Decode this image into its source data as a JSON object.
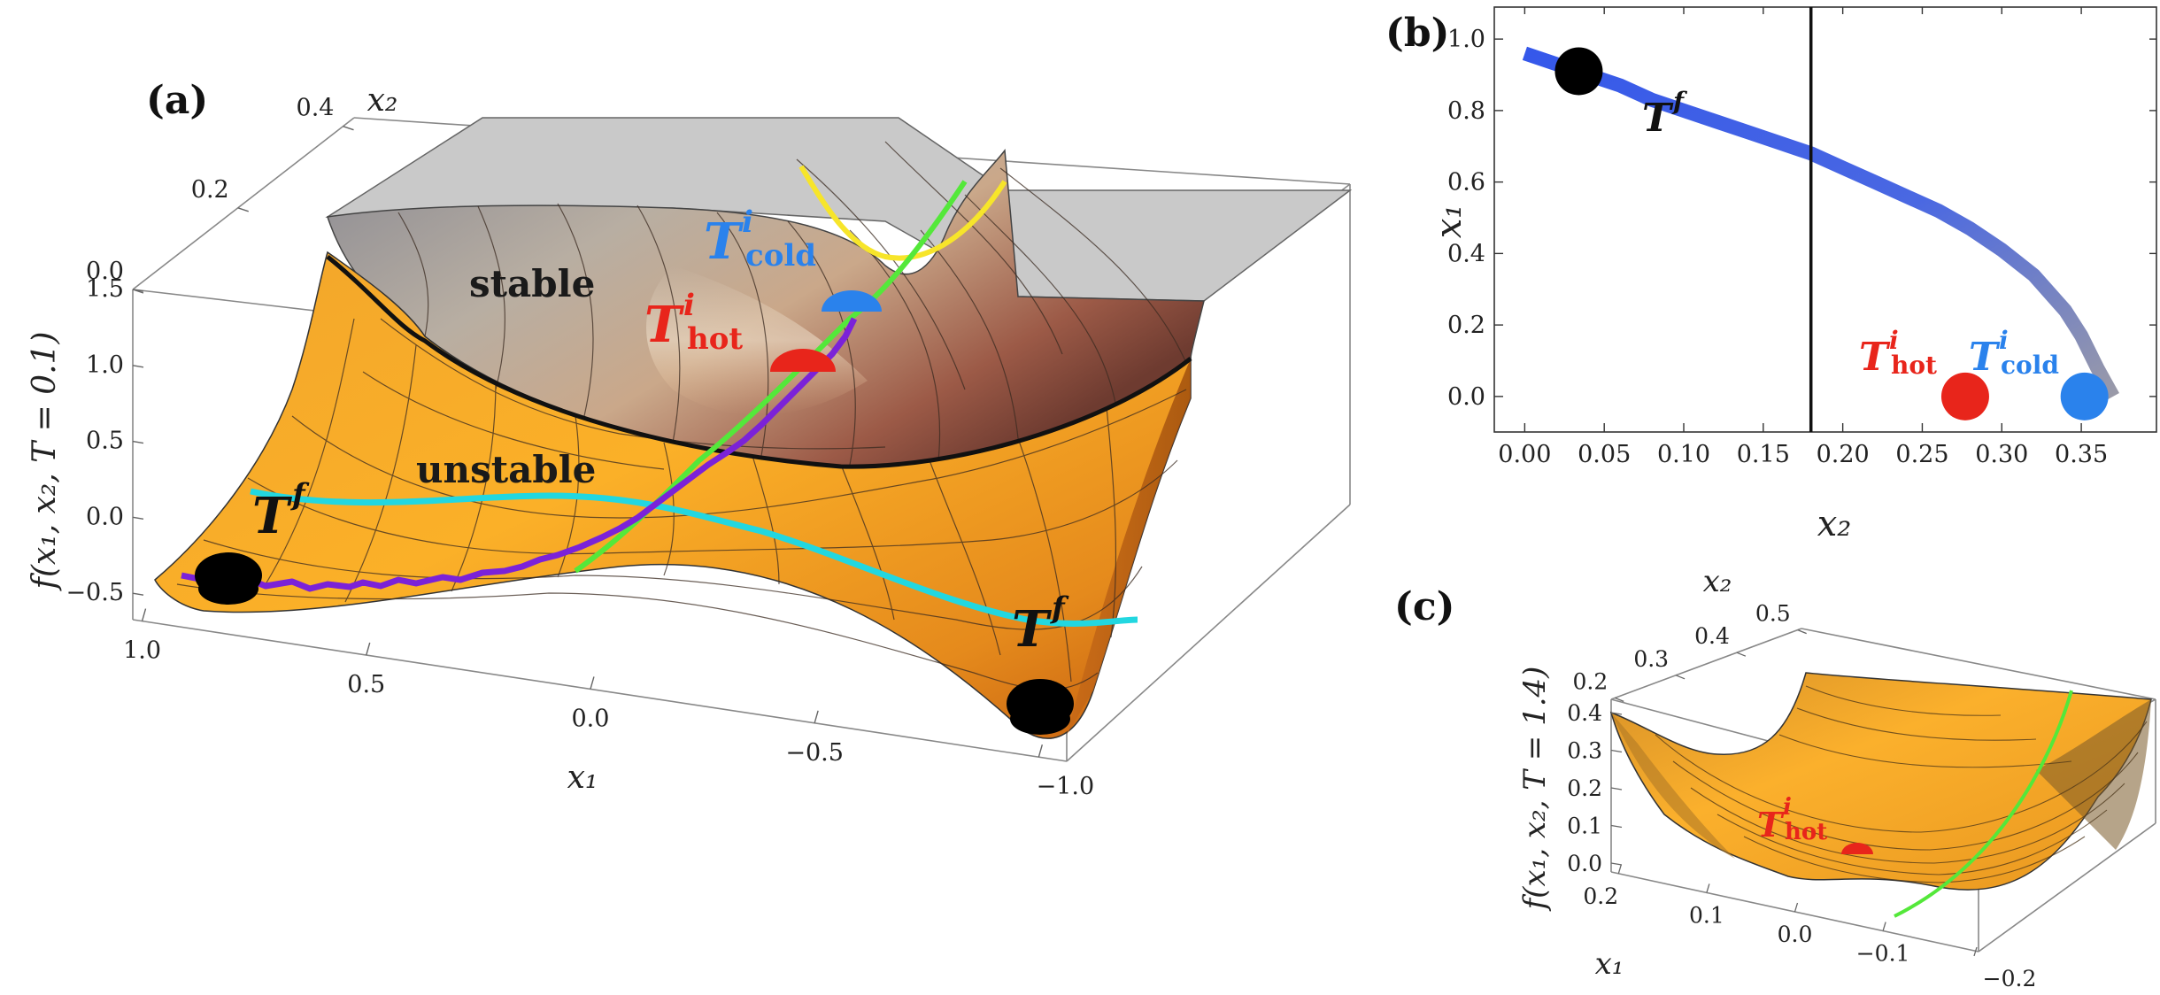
{
  "colors": {
    "stable": "#9a9a9a",
    "unstable": "#f3a327",
    "critical_line": "#111111",
    "Tf_cyan": "#22d7e0",
    "yellow": "#f7e52a",
    "green": "#54e83a",
    "purple": "#7b22d8",
    "hot": "#e8251b",
    "cold": "#2a82ec",
    "branch_blue": "#3d5ee6",
    "branch_red": "#cc2a2a",
    "minimum_marker": "#000000"
  },
  "labels": {
    "T": "T",
    "i": "i",
    "f": "f",
    "hot": "hot",
    "cold": "cold"
  },
  "panel_a": {
    "tag": "(a)",
    "stable_label": "stable",
    "unstable_label": "unstable",
    "zlabel": "f(x₁, x₂, T = 0.1)",
    "xlabel": "x₁",
    "ylabel": "x₂",
    "x_ticks": [
      "1.0",
      "0.5",
      "0.0",
      "−0.5",
      "−1.0"
    ],
    "y_ticks": [
      "0.0",
      "0.2",
      "0.4"
    ],
    "z_ticks": [
      "1.5",
      "1.0",
      "0.5",
      "0.0",
      "−0.5"
    ]
  },
  "panel_b": {
    "tag": "(b)",
    "xlabel": "x₂",
    "ylabel": "x₁"
  },
  "panel_c": {
    "tag": "(c)",
    "zlabel": "f(x₁, x₂, T = 1.4)",
    "xlabel": "x₁",
    "ylabel": "x₂",
    "x_ticks": [
      "0.2",
      "0.1",
      "0.0",
      "−0.1",
      "−0.2"
    ],
    "y_ticks": [
      "0.2",
      "0.3",
      "0.4",
      "0.5"
    ],
    "z_ticks": [
      "0.4",
      "0.3",
      "0.2",
      "0.1",
      "0.0"
    ]
  },
  "chart_data": [
    {
      "panel": "(a)",
      "type": "area",
      "title": "",
      "xlabel": "x₁",
      "ylabel": "x₂",
      "zlabel": "f(x₁, x₂, T = 0.1)",
      "xlim": [
        1.0,
        -1.0
      ],
      "ylim": [
        0.0,
        0.4
      ],
      "zlim": [
        -0.5,
        1.5
      ],
      "regions": [
        "stable",
        "unstable"
      ],
      "annotations": [
        "T^f",
        "T^i_cold",
        "T^i_hot",
        "T^f"
      ]
    },
    {
      "panel": "(b)",
      "type": "line",
      "xlabel": "x₂",
      "ylabel": "x₁",
      "xlim": [
        0.0,
        0.37
      ],
      "ylim": [
        0.0,
        1.0
      ],
      "x_ticks": [
        0.0,
        0.05,
        0.1,
        0.15,
        0.2,
        0.25,
        0.3,
        0.35
      ],
      "x_tick_labels": [
        "0.00",
        "0.05",
        "0.10",
        "0.15",
        "0.20",
        "0.25",
        "0.30",
        "0.35"
      ],
      "y_ticks": [
        0.0,
        0.2,
        0.4,
        0.6,
        0.8,
        1.0
      ],
      "y_tick_labels": [
        "0.0",
        "0.2",
        "0.4",
        "0.6",
        "0.8",
        "1.0"
      ],
      "vline_x": 0.18,
      "series": [
        {
          "x": [
            0.0,
            0.02,
            0.04,
            0.06,
            0.08,
            0.1,
            0.12,
            0.14,
            0.16,
            0.18,
            0.2,
            0.22,
            0.24,
            0.26,
            0.28,
            0.3,
            0.32,
            0.34,
            0.35,
            0.36,
            0.365,
            0.37
          ],
          "values": [
            0.96,
            0.93,
            0.9,
            0.87,
            0.83,
            0.8,
            0.77,
            0.74,
            0.71,
            0.68,
            0.64,
            0.6,
            0.56,
            0.52,
            0.47,
            0.41,
            0.34,
            0.24,
            0.17,
            0.08,
            0.04,
            0.0
          ]
        },
        {
          "x": [
            0.0,
            0.37
          ],
          "values": [
            0.0,
            0.0
          ]
        }
      ],
      "points": [
        {
          "label": "T^f",
          "x": 0.034,
          "y": 0.91
        },
        {
          "label": "T^i_hot",
          "x": 0.277,
          "y": 0.0
        },
        {
          "label": "T^i_cold",
          "x": 0.352,
          "y": 0.0
        }
      ]
    },
    {
      "panel": "(c)",
      "type": "area",
      "xlabel": "x₁",
      "ylabel": "x₂",
      "zlabel": "f(x₁, x₂, T = 1.4)",
      "xlim": [
        0.2,
        -0.2
      ],
      "ylim": [
        0.2,
        0.5
      ],
      "zlim": [
        0.0,
        0.4
      ],
      "annotations": [
        "T^i_hot"
      ]
    }
  ]
}
